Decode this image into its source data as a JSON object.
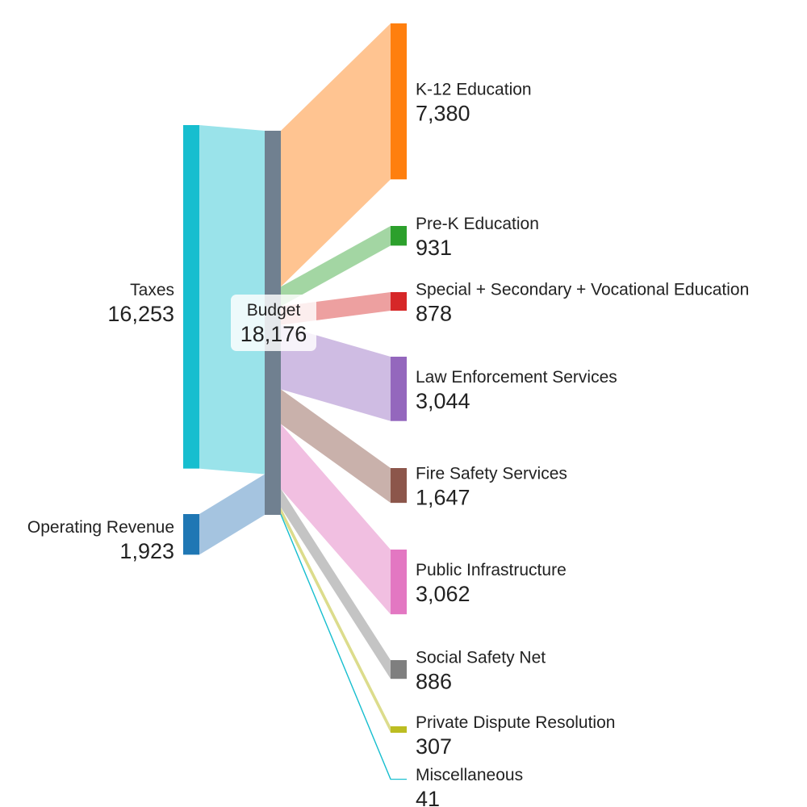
{
  "chart_data": {
    "type": "sankey",
    "nodes": [
      {
        "id": "taxes",
        "name": "Taxes",
        "value": "16,253",
        "amount": 16253,
        "color": "#17becf",
        "linkColor": "#9ae3ea"
      },
      {
        "id": "opr",
        "name": "Operating Revenue",
        "value": "1,923",
        "amount": 1923,
        "color": "#1f77b4",
        "linkColor": "#a5c4e0"
      },
      {
        "id": "budget",
        "name": "Budget",
        "value": "18,176",
        "amount": 18176,
        "color": "#708090"
      },
      {
        "id": "k12",
        "name": "K-12 Education",
        "value": "7,380",
        "amount": 7380,
        "color": "#ff7f0e",
        "linkColor": "#ffc491"
      },
      {
        "id": "prek",
        "name": "Pre-K Education",
        "value": "931",
        "amount": 931,
        "color": "#2ca02c",
        "linkColor": "#a3d6a3"
      },
      {
        "id": "ssv",
        "name": "Special + Secondary + Vocational Education",
        "value": "878",
        "amount": 878,
        "color": "#d62728",
        "linkColor": "#eda0a0"
      },
      {
        "id": "law",
        "name": "Law Enforcement Services",
        "value": "3,044",
        "amount": 3044,
        "color": "#9467bd",
        "linkColor": "#cfbce3"
      },
      {
        "id": "fire",
        "name": "Fire Safety Services",
        "value": "1,647",
        "amount": 1647,
        "color": "#8c564b",
        "linkColor": "#c9b1ab"
      },
      {
        "id": "infra",
        "name": "Public Infrastructure",
        "value": "3,062",
        "amount": 3062,
        "color": "#e377c2",
        "linkColor": "#f1bfe1"
      },
      {
        "id": "social",
        "name": "Social Safety Net",
        "value": "886",
        "amount": 886,
        "color": "#7f7f7f",
        "linkColor": "#c4c4c4"
      },
      {
        "id": "pdr",
        "name": "Private Dispute Resolution",
        "value": "307",
        "amount": 307,
        "color": "#bcbd22",
        "linkColor": "#dcdc8c"
      },
      {
        "id": "misc",
        "name": "Miscellaneous",
        "value": "41",
        "amount": 41,
        "color": "#17becf",
        "linkColor": "#17becf"
      }
    ],
    "links": [
      {
        "source": "taxes",
        "target": "budget",
        "value": 16253
      },
      {
        "source": "opr",
        "target": "budget",
        "value": 1923
      },
      {
        "source": "budget",
        "target": "k12",
        "value": 7380
      },
      {
        "source": "budget",
        "target": "prek",
        "value": 931
      },
      {
        "source": "budget",
        "target": "ssv",
        "value": 878
      },
      {
        "source": "budget",
        "target": "law",
        "value": 3044
      },
      {
        "source": "budget",
        "target": "fire",
        "value": 1647
      },
      {
        "source": "budget",
        "target": "infra",
        "value": 3062
      },
      {
        "source": "budget",
        "target": "social",
        "value": 886
      },
      {
        "source": "budget",
        "target": "pdr",
        "value": 307
      },
      {
        "source": "budget",
        "target": "misc",
        "value": 41
      }
    ]
  }
}
